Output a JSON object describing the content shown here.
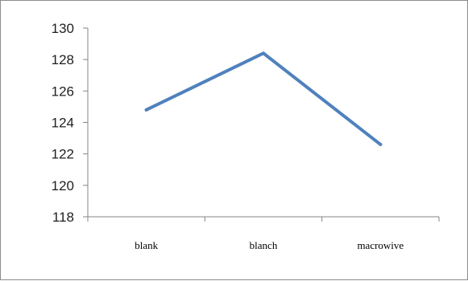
{
  "chart_data": {
    "type": "line",
    "title": "",
    "xlabel": "",
    "ylabel": "",
    "categories": [
      "blank",
      "blanch",
      "macrowive"
    ],
    "series": [
      {
        "values": [
          124.8,
          128.4,
          122.6
        ]
      }
    ],
    "ylim": [
      118,
      130
    ],
    "yticks": [
      "118",
      "120",
      "122",
      "124",
      "126",
      "128",
      "130"
    ],
    "grid": false,
    "legend": "none",
    "colors": {
      "line": "#4f81bd",
      "axis": "#868686"
    }
  }
}
